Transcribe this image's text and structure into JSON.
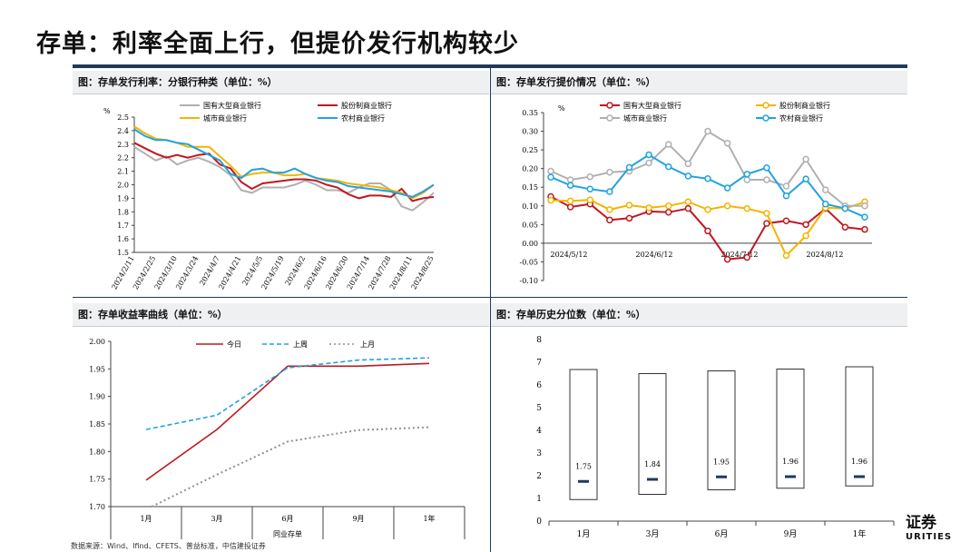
{
  "page": {
    "title": "存单：利率全面上行，但提价发行机构较少",
    "source": "数据来源：Wind、Ifind、CFETS、普益标准，中信建投证券",
    "logo_text": "证券",
    "logo_sub": "URITIES"
  },
  "panels": {
    "p1_title": "图：存单发行利率：分银行种类（单位：%）",
    "p2_title": "图：存单发行提价情况（单位：%）",
    "p3_title": "图：存单收益率曲线（单位：%）",
    "p4_title": "图：存单历史分位数（单位：%）"
  },
  "colors": {
    "red": "#c0181f",
    "gray": "#b0b0b0",
    "yellow": "#f5b400",
    "blue": "#1fa3e0",
    "navy": "#1f3a5a"
  },
  "chart_data": [
    {
      "type": "line",
      "title": "图：存单发行利率：分银行种类（单位：%）",
      "ylabel": "%",
      "ylim": [
        1.5,
        2.5
      ],
      "yticks": [
        1.5,
        1.6,
        1.7,
        1.8,
        1.9,
        2.0,
        2.1,
        2.2,
        2.3,
        2.4,
        2.5
      ],
      "tick_labels": [
        "2024/2/11",
        "2024/2/25",
        "2024/3/10",
        "2024/3/24",
        "2024/4/7",
        "2024/4/21",
        "2024/5/5",
        "2024/5/19",
        "2024/6/2",
        "2024/6/16",
        "2024/6/30",
        "2024/7/14",
        "2024/7/28",
        "2024/8/11",
        "2024/8/25"
      ],
      "series": [
        {
          "name": "国有大型商业银行",
          "color": "#b0b0b0",
          "values": [
            2.28,
            2.23,
            2.18,
            2.21,
            2.15,
            2.18,
            2.2,
            2.17,
            2.13,
            2.07,
            1.96,
            1.94,
            1.98,
            1.98,
            1.98,
            2.0,
            2.03,
            2.0,
            1.96,
            1.96,
            1.94,
            1.98,
            2.01,
            2.01,
            1.96,
            1.84,
            1.81,
            1.87,
            1.94
          ]
        },
        {
          "name": "股份制商业银行",
          "color": "#c0181f",
          "values": [
            2.31,
            2.27,
            2.23,
            2.2,
            2.22,
            2.2,
            2.22,
            2.23,
            2.15,
            2.12,
            2.02,
            1.97,
            2.01,
            2.02,
            2.03,
            2.04,
            2.04,
            2.03,
            2.0,
            1.98,
            1.93,
            1.9,
            1.92,
            1.92,
            1.91,
            1.97,
            1.88,
            1.9,
            1.91
          ]
        },
        {
          "name": "城市商业银行",
          "color": "#f5b400",
          "values": [
            2.43,
            2.38,
            2.34,
            2.33,
            2.31,
            2.28,
            2.28,
            2.28,
            2.21,
            2.14,
            2.06,
            2.08,
            2.09,
            2.09,
            2.07,
            2.07,
            2.08,
            2.05,
            2.04,
            2.03,
            2.01,
            2.0,
            1.99,
            1.98,
            1.96,
            1.94,
            1.9,
            1.94,
            2.0
          ]
        },
        {
          "name": "农村商业银行",
          "color": "#1fa3e0",
          "values": [
            2.41,
            2.36,
            2.33,
            2.33,
            2.31,
            2.3,
            2.26,
            2.22,
            2.18,
            2.08,
            2.05,
            2.11,
            2.12,
            2.09,
            2.09,
            2.12,
            2.08,
            2.05,
            2.03,
            2.02,
            1.99,
            1.98,
            1.97,
            1.96,
            1.95,
            1.93,
            1.91,
            1.95,
            2.0
          ]
        }
      ]
    },
    {
      "type": "line",
      "title": "图：存单发行提价情况（单位：%）",
      "ylabel": "%",
      "ylim": [
        -0.1,
        0.35
      ],
      "yticks": [
        -0.1,
        -0.05,
        0.0,
        0.05,
        0.1,
        0.15,
        0.2,
        0.25,
        0.3,
        0.35
      ],
      "tick_labels": [
        "2024/5/12",
        "2024/6/12",
        "2024/7/12",
        "2024/8/12"
      ],
      "series": [
        {
          "name": "国有大型商业银行",
          "color": "#c0181f",
          "values": [
            0.125,
            0.097,
            0.105,
            0.062,
            0.067,
            0.085,
            0.083,
            0.093,
            0.033,
            -0.043,
            -0.038,
            0.053,
            0.06,
            0.05,
            0.093,
            0.043,
            0.037
          ]
        },
        {
          "name": "股份制商业银行",
          "color": "#f5b400",
          "values": [
            0.115,
            0.113,
            0.116,
            0.09,
            0.102,
            0.095,
            0.1,
            0.111,
            0.09,
            0.1,
            0.093,
            0.08,
            -0.033,
            0.02,
            0.095,
            0.093,
            0.111
          ]
        },
        {
          "name": "城市商业银行",
          "color": "#b0b0b0",
          "values": [
            0.193,
            0.17,
            0.178,
            0.19,
            0.193,
            0.215,
            0.265,
            0.213,
            0.3,
            0.268,
            0.17,
            0.17,
            0.153,
            0.225,
            0.143,
            0.1,
            0.1
          ]
        },
        {
          "name": "农村商业银行",
          "color": "#1fa3e0",
          "values": [
            0.177,
            0.155,
            0.145,
            0.138,
            0.203,
            0.237,
            0.205,
            0.18,
            0.173,
            0.148,
            0.185,
            0.202,
            0.127,
            0.172,
            0.105,
            0.093,
            0.07
          ]
        }
      ]
    },
    {
      "type": "line",
      "title": "图：存单收益率曲线（单位：%）",
      "xlabel": "同业存单",
      "categories": [
        "1月",
        "3月",
        "6月",
        "9月",
        "1年"
      ],
      "ylim": [
        1.7,
        2.0
      ],
      "yticks": [
        "1.70",
        "1.75",
        "1.80",
        "1.85",
        "1.90",
        "1.95",
        "2.00"
      ],
      "series": [
        {
          "name": "今日",
          "color": "#c0181f",
          "values": [
            1.748,
            1.84,
            1.955,
            1.955,
            1.96
          ]
        },
        {
          "name": "上周",
          "color": "#1fa3e0",
          "values": [
            1.84,
            1.866,
            1.952,
            1.966,
            1.97
          ]
        },
        {
          "name": "上月",
          "color": "#909090",
          "values": [
            1.695,
            1.758,
            1.818,
            1.839,
            1.844
          ]
        }
      ]
    },
    {
      "type": "bar",
      "title": "图：存单历史分位数（单位：%）",
      "categories": [
        "1月",
        "3月",
        "6月",
        "9月",
        "1年"
      ],
      "ylim": [
        0,
        8
      ],
      "yticks": [
        0,
        1,
        2,
        3,
        4,
        5,
        6,
        7,
        8
      ],
      "ranges": [
        [
          0.95,
          6.68
        ],
        [
          1.18,
          6.5
        ],
        [
          1.38,
          6.62
        ],
        [
          1.45,
          6.7
        ],
        [
          1.55,
          6.8
        ]
      ],
      "current": [
        1.75,
        1.84,
        1.95,
        1.96,
        1.96
      ],
      "current_labels": [
        "1.75",
        "1.84",
        "1.95",
        "1.96",
        "1.96"
      ]
    }
  ]
}
